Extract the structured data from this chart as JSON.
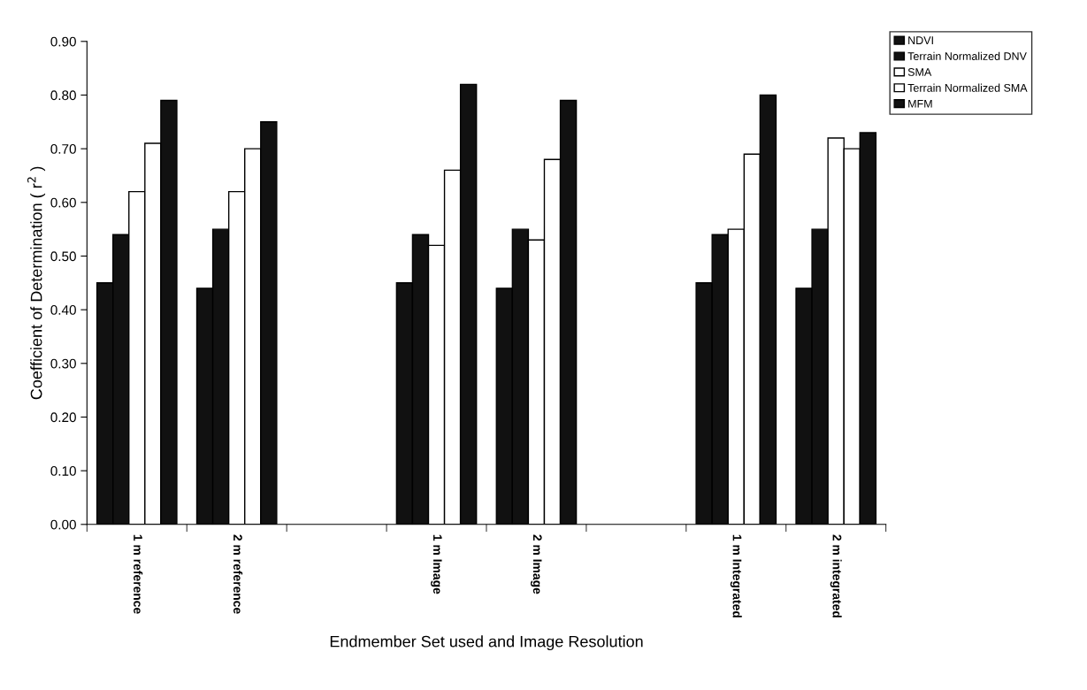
{
  "chart_data": {
    "type": "bar",
    "xlabel": "Endmember Set used and Image Resolution",
    "ylabel": "Coefficient of Determination ( r$^{2}$ )",
    "categories": [
      "1 m reference",
      "2 m reference",
      null,
      "1 m Image",
      "2 m Image",
      null,
      "1 m Integrated",
      "2 m integrated"
    ],
    "series": [
      {
        "name": "NDVI",
        "color": "#111111",
        "values": [
          0.45,
          0.44,
          null,
          0.45,
          0.44,
          null,
          0.45,
          0.44
        ]
      },
      {
        "name": "Terrain Normalized DNV",
        "color": "#111111",
        "values": [
          0.54,
          0.55,
          null,
          0.54,
          0.55,
          null,
          0.54,
          0.55
        ]
      },
      {
        "name": "SMA",
        "color": "#ffffff",
        "values": [
          0.62,
          0.62,
          null,
          0.52,
          0.53,
          null,
          0.55,
          0.72
        ]
      },
      {
        "name": "Terrain Normalized SMA",
        "color": "#ffffff",
        "values": [
          0.71,
          0.7,
          null,
          0.66,
          0.68,
          null,
          0.69,
          0.7
        ]
      },
      {
        "name": "MFM",
        "color": "#111111",
        "values": [
          0.79,
          0.75,
          null,
          0.82,
          0.79,
          null,
          0.8,
          0.73
        ]
      }
    ],
    "ylim": [
      0,
      0.9
    ],
    "yticks": [
      {
        "value": 0,
        "label": "0.00"
      },
      {
        "value": 0.1,
        "label": "0.10"
      },
      {
        "value": 0.2,
        "label": "0.20"
      },
      {
        "value": 0.3,
        "label": "0.30"
      },
      {
        "value": 0.4,
        "label": "0.40"
      },
      {
        "value": 0.5,
        "label": "0.50"
      },
      {
        "value": 0.6,
        "label": "0.60"
      },
      {
        "value": 0.7,
        "label": "0.70"
      },
      {
        "value": 0.8,
        "label": "0.80"
      },
      {
        "value": 0.9,
        "label": "0.90"
      }
    ],
    "grid": false,
    "legend": "top right"
  }
}
